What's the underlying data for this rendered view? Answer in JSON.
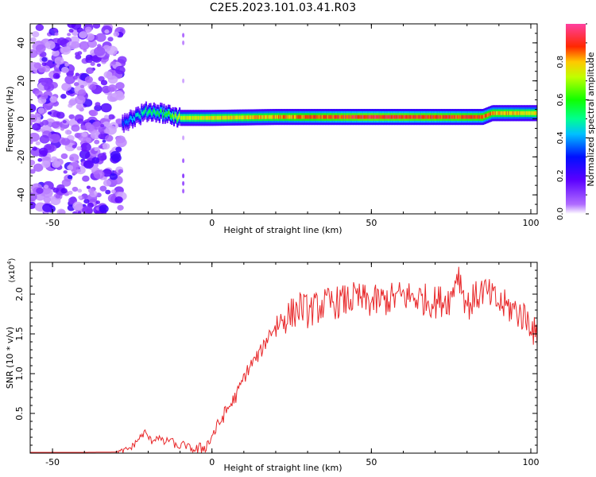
{
  "title": "C2E5.2023.101.03.41.R03",
  "colors": {
    "snr_line": "#e8282a",
    "axis": "#000000",
    "background": "#ffffff"
  },
  "chart_data": [
    {
      "type": "heatmap",
      "xlabel": "Height of straight line (km)",
      "ylabel": "Frequency (Hz)",
      "xlim": [
        -57,
        102
      ],
      "ylim": [
        -50,
        50
      ],
      "xticks": [
        -50,
        0,
        50,
        100
      ],
      "yticks": [
        -40,
        -20,
        0,
        20,
        40
      ],
      "colorbar": {
        "label": "Normalized spectral amplitude",
        "range": [
          0,
          1
        ],
        "ticks": [
          "0.0",
          "0.2",
          "0.4",
          "0.6",
          "0.8"
        ],
        "colormap": "rainbow (white → violet → blue → cyan → green → yellow → red → pink)"
      },
      "features": {
        "noise_region_height_km": [
          -57,
          -28
        ],
        "isolated_speckle_height_km": -9,
        "main_trace": {
          "height_km": [
            -28,
            -20,
            -15,
            -10,
            0,
            20,
            50,
            85,
            88,
            102
          ],
          "frequency_hz": [
            -2,
            4,
            3,
            0.5,
            0.5,
            1,
            1,
            1,
            3,
            3
          ],
          "amplitude": [
            0.35,
            0.55,
            0.6,
            0.75,
            0.8,
            0.85,
            0.95,
            0.9,
            0.85,
            0.8
          ]
        }
      }
    },
    {
      "type": "line",
      "xlabel": "Height of straight line (km)",
      "ylabel": "SNR (10 * v/v)",
      "yscale_label": "(x10",
      "yscale_exp": "4",
      "yscale_close": ")",
      "xlim": [
        -57,
        102
      ],
      "ylim": [
        0,
        24000
      ],
      "xticks": [
        -50,
        0,
        50,
        100
      ],
      "yticks": [
        5000,
        10000,
        15000,
        20000
      ],
      "ytick_labels": [
        "0.5",
        "1.0",
        "1.5",
        "2.0"
      ],
      "series": [
        {
          "x": [
            -57,
            -40,
            -28,
            -25,
            -23,
            -21,
            -19,
            -17,
            -15,
            -13,
            -11,
            -9,
            -7,
            -5,
            -3,
            -1,
            0,
            2,
            4,
            6,
            8,
            10,
            12,
            14,
            16,
            18,
            20,
            22,
            25,
            28,
            30,
            33,
            36,
            40,
            45,
            50,
            55,
            60,
            65,
            70,
            75,
            77,
            80,
            85,
            90,
            95,
            100,
            102
          ],
          "y": [
            100,
            100,
            150,
            800,
            1800,
            2600,
            1500,
            2100,
            1300,
            1800,
            700,
            1100,
            700,
            300,
            600,
            1300,
            2200,
            3500,
            5000,
            6200,
            7500,
            9500,
            11000,
            12000,
            13200,
            15000,
            16000,
            16800,
            17500,
            18500,
            17800,
            18300,
            18800,
            19000,
            19500,
            19000,
            19300,
            19800,
            19500,
            19000,
            19500,
            23000,
            18500,
            20500,
            18800,
            18000,
            16500,
            14000
          ]
        }
      ]
    }
  ]
}
